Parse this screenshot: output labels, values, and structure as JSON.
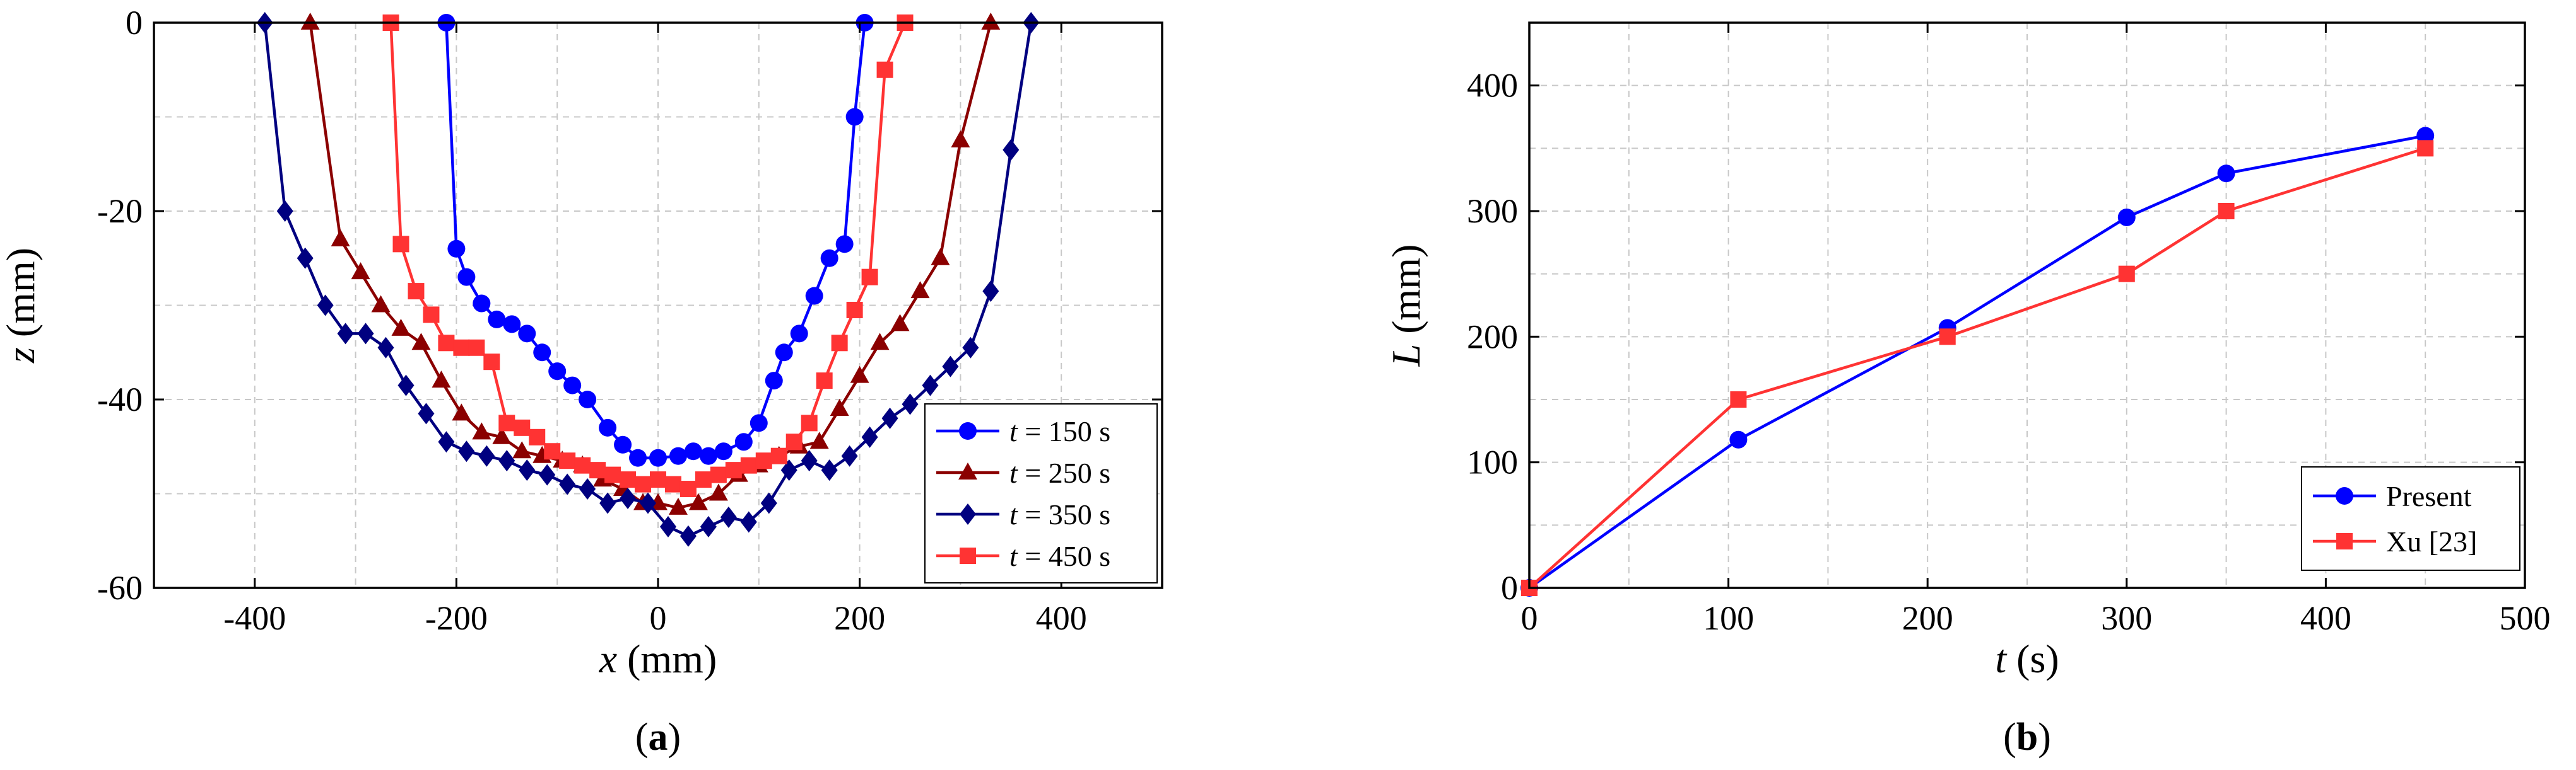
{
  "chart_data": [
    {
      "panel": "(a)",
      "panel_prefix": "(",
      "panel_letter": "a",
      "panel_suffix": ")",
      "type": "line",
      "xlabel_var": "x",
      "xlabel_unit": " (mm)",
      "ylabel_var": "z",
      "ylabel_unit": " (mm)",
      "xlim": [
        -500,
        500
      ],
      "ylim": [
        -60,
        0
      ],
      "xticks": [
        -400,
        -200,
        0,
        200,
        400
      ],
      "yticks": [
        -60,
        -40,
        -20,
        0
      ],
      "grid": true,
      "legend_position": "lower-right",
      "series": [
        {
          "name": "t = 150 s",
          "label_var": "t",
          "label_value": " = 150 s",
          "color": "#0000ff",
          "marker": "circle",
          "x": [
            -210,
            -200,
            -190,
            -175,
            -160,
            -145,
            -130,
            -115,
            -100,
            -85,
            -70,
            -50,
            -35,
            -20,
            0,
            20,
            35,
            50,
            65,
            85,
            100,
            115,
            125,
            140,
            155,
            170,
            185,
            195,
            205
          ],
          "y": [
            0,
            -24,
            -27,
            -29.8,
            -31.5,
            -32,
            -33,
            -35,
            -37,
            -38.5,
            -40,
            -43,
            -44.8,
            -46.2,
            -46.2,
            -46,
            -45.5,
            -46,
            -45.5,
            -44.5,
            -42.5,
            -38,
            -35,
            -33,
            -29,
            -25,
            -23.5,
            -10,
            0
          ]
        },
        {
          "name": "t = 250 s",
          "label_var": "t",
          "label_value": " = 250 s",
          "color": "#8b0000",
          "marker": "triangle",
          "x": [
            -345,
            -315,
            -295,
            -275,
            -255,
            -235,
            -215,
            -195,
            -175,
            -155,
            -135,
            -115,
            -95,
            -75,
            -55,
            -35,
            -15,
            0,
            20,
            40,
            60,
            80,
            100,
            120,
            140,
            160,
            180,
            200,
            220,
            240,
            260,
            280,
            300,
            330
          ],
          "y": [
            0,
            -23,
            -26.5,
            -30,
            -32.5,
            -34,
            -38,
            -41.5,
            -43.5,
            -44,
            -45.5,
            -46,
            -46.5,
            -47,
            -48.5,
            -49.5,
            -51,
            -51,
            -51.5,
            -51,
            -50,
            -48,
            -47,
            -46,
            -45,
            -44.5,
            -41,
            -37.5,
            -34,
            -32,
            -28.5,
            -25,
            -12.5,
            0
          ]
        },
        {
          "name": "t = 350 s",
          "label_var": "t",
          "label_value": " = 350 s",
          "color": "#000080",
          "marker": "diamond",
          "x": [
            -390,
            -370,
            -350,
            -330,
            -310,
            -290,
            -270,
            -250,
            -230,
            -210,
            -190,
            -170,
            -150,
            -130,
            -110,
            -90,
            -70,
            -50,
            -30,
            -10,
            10,
            30,
            50,
            70,
            90,
            110,
            130,
            150,
            170,
            190,
            210,
            230,
            250,
            270,
            290,
            310,
            330,
            350,
            370
          ],
          "y": [
            0,
            -20,
            -25,
            -30,
            -33,
            -33,
            -34.5,
            -38.5,
            -41.5,
            -44.5,
            -45.5,
            -46,
            -46.5,
            -47.5,
            -48,
            -49,
            -49.5,
            -51,
            -50.5,
            -51,
            -53.5,
            -54.5,
            -53.5,
            -52.5,
            -53,
            -51,
            -47.5,
            -46.5,
            -47.5,
            -46,
            -44,
            -42,
            -40.5,
            -38.5,
            -36.5,
            -34.5,
            -28.5,
            -13.5,
            0
          ]
        },
        {
          "name": "t = 450 s",
          "label_var": "t",
          "label_value": " = 450 s",
          "color": "#ff3333",
          "marker": "square",
          "x": [
            -265,
            -255,
            -240,
            -225,
            -210,
            -195,
            -180,
            -165,
            -150,
            -135,
            -120,
            -105,
            -90,
            -75,
            -60,
            -45,
            -30,
            -15,
            0,
            15,
            30,
            45,
            60,
            75,
            90,
            105,
            120,
            135,
            150,
            165,
            180,
            195,
            210,
            225,
            245
          ],
          "y": [
            0,
            -23.5,
            -28.5,
            -31,
            -34,
            -34.5,
            -34.5,
            -36,
            -42.5,
            -43,
            -44,
            -45.5,
            -46.5,
            -47,
            -47.5,
            -48,
            -48.5,
            -49,
            -48.5,
            -49,
            -49.5,
            -48.5,
            -48,
            -47.5,
            -47,
            -46.5,
            -46,
            -44.5,
            -42.5,
            -38,
            -34,
            -30.5,
            -27,
            -5,
            0
          ]
        }
      ]
    },
    {
      "panel": "(b)",
      "panel_prefix": "(",
      "panel_letter": "b",
      "panel_suffix": ")",
      "type": "line",
      "xlabel_var": "t",
      "xlabel_unit": " (s)",
      "ylabel_var": "L",
      "ylabel_unit": " (mm)",
      "xlim": [
        0,
        500
      ],
      "ylim": [
        0,
        450
      ],
      "xticks": [
        0,
        100,
        200,
        300,
        400,
        500
      ],
      "yticks": [
        0,
        100,
        200,
        300,
        400
      ],
      "grid": true,
      "legend_position": "lower-right",
      "series": [
        {
          "name": "Present",
          "color": "#0000ff",
          "marker": "circle",
          "x": [
            0,
            105,
            210,
            300,
            350,
            450
          ],
          "y": [
            0,
            118,
            207,
            295,
            330,
            360
          ]
        },
        {
          "name": "Xu [23]",
          "color": "#ff3333",
          "marker": "square",
          "x": [
            0,
            105,
            210,
            300,
            350,
            450
          ],
          "y": [
            0,
            150,
            200,
            250,
            300,
            350
          ]
        }
      ]
    }
  ]
}
